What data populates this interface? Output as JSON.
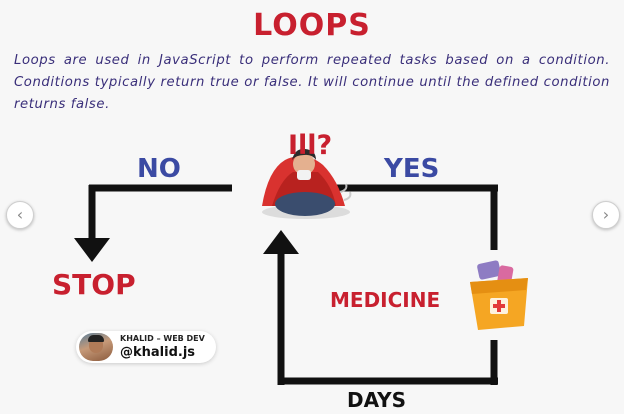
{
  "title": "LOOPS",
  "description": "Loops are used in JavaScript to perform repeated tasks based on a condition. Conditions typically return true or false. It will continue until the defined condition returns false.",
  "diagram": {
    "condition_label": "Ill?",
    "no_label": "NO",
    "yes_label": "YES",
    "stop_label": "STOP",
    "medicine_label": "MEDICINE",
    "days_label": "DAYS"
  },
  "author": {
    "name": "KHALID – WEB DEV",
    "handle": "@khalid.js"
  },
  "navigation": {
    "prev_icon": "‹",
    "next_icon": "›"
  },
  "icons": [
    "sick-person-icon",
    "medicine-bag-icon",
    "avatar"
  ],
  "colors": {
    "title_red": "#c8202f",
    "label_blue": "#3b4aa3",
    "text_purple": "#3a2f7a",
    "arrow_black": "#111111"
  }
}
